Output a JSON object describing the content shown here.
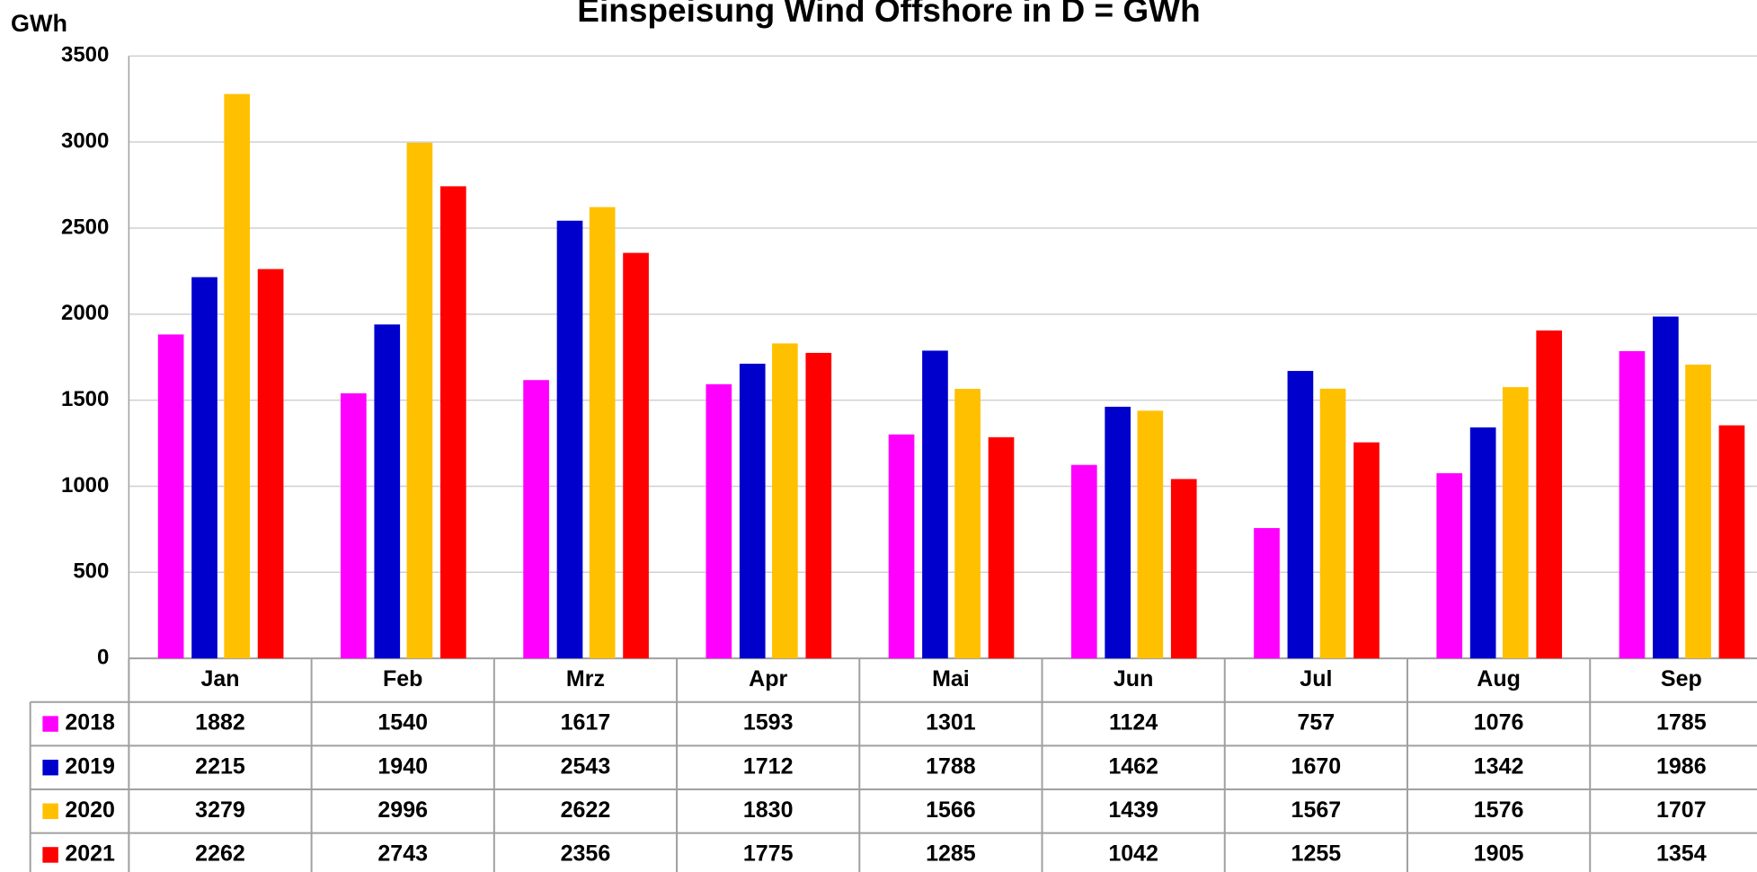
{
  "chart_data": {
    "type": "bar",
    "title": "Einspeisung Wind Offshore  in D  =  GWh",
    "y_label": "GWh",
    "categories": [
      "Jan",
      "Feb",
      "Mrz",
      "Apr",
      "Mai",
      "Jun",
      "Jul",
      "Aug",
      "Sep"
    ],
    "series": [
      {
        "name": "2018",
        "color": "#ff00ff",
        "values": [
          1882,
          1540,
          1617,
          1593,
          1301,
          1124,
          757,
          1076,
          1785
        ]
      },
      {
        "name": "2019",
        "color": "#0000cc",
        "values": [
          2215,
          1940,
          2543,
          1712,
          1788,
          1462,
          1670,
          1342,
          1986
        ]
      },
      {
        "name": "2020",
        "color": "#ffc000",
        "values": [
          3279,
          2996,
          2622,
          1830,
          1566,
          1439,
          1567,
          1576,
          1707
        ]
      },
      {
        "name": "2021",
        "color": "#ff0000",
        "values": [
          2262,
          2743,
          2356,
          1775,
          1285,
          1042,
          1255,
          1905,
          1354
        ]
      }
    ],
    "ylim": [
      0,
      3500
    ],
    "yticks": [
      0,
      500,
      1000,
      1500,
      2000,
      2500,
      3000,
      3500
    ],
    "grid": true
  }
}
